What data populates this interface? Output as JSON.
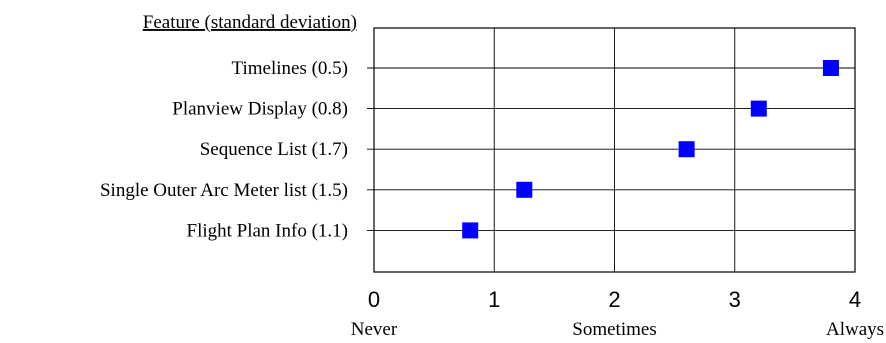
{
  "chart_data": {
    "type": "scatter",
    "header": "Feature (standard deviation)",
    "categories": [
      "Timelines (0.5)",
      "Planview Display (0.8)",
      "Sequence List (1.7)",
      "Single Outer Arc Meter list (1.5)",
      "Flight Plan Info (1.1)"
    ],
    "values": [
      3.8,
      3.2,
      2.6,
      1.25,
      0.8
    ],
    "xlim": [
      0,
      4
    ],
    "xticks": [
      "0",
      "1",
      "2",
      "3",
      "4"
    ],
    "scale_labels": [
      {
        "value": 0,
        "label": "Never"
      },
      {
        "value": 2,
        "label": "Sometimes"
      },
      {
        "value": 4,
        "label": "Always"
      }
    ],
    "grid": true,
    "marker_color": "#0000ff",
    "grid_color": "#000000"
  }
}
